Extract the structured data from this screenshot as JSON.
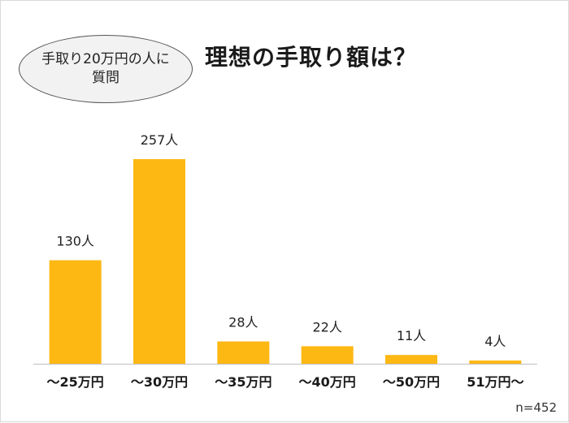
{
  "bubble": {
    "line1": "手取り20万円の人に",
    "line2": "質問"
  },
  "title": "理想の手取り額は？",
  "note": "n=452",
  "colors": {
    "bar": "#FDB813",
    "baseline": "#bfbfbf"
  },
  "chart_data": {
    "type": "bar",
    "title": "理想の手取り額は？",
    "categories": [
      "～25万円",
      "～30万円",
      "～35万円",
      "～40万円",
      "～50万円",
      "51万円～"
    ],
    "values": [
      130,
      257,
      28,
      22,
      11,
      4
    ],
    "labels": [
      "130人",
      "257人",
      "28人",
      "22人",
      "11人",
      "4人"
    ],
    "xlabel": "",
    "ylabel": "",
    "ylim": [
      0,
      257
    ],
    "grid": false,
    "legend": "none"
  }
}
